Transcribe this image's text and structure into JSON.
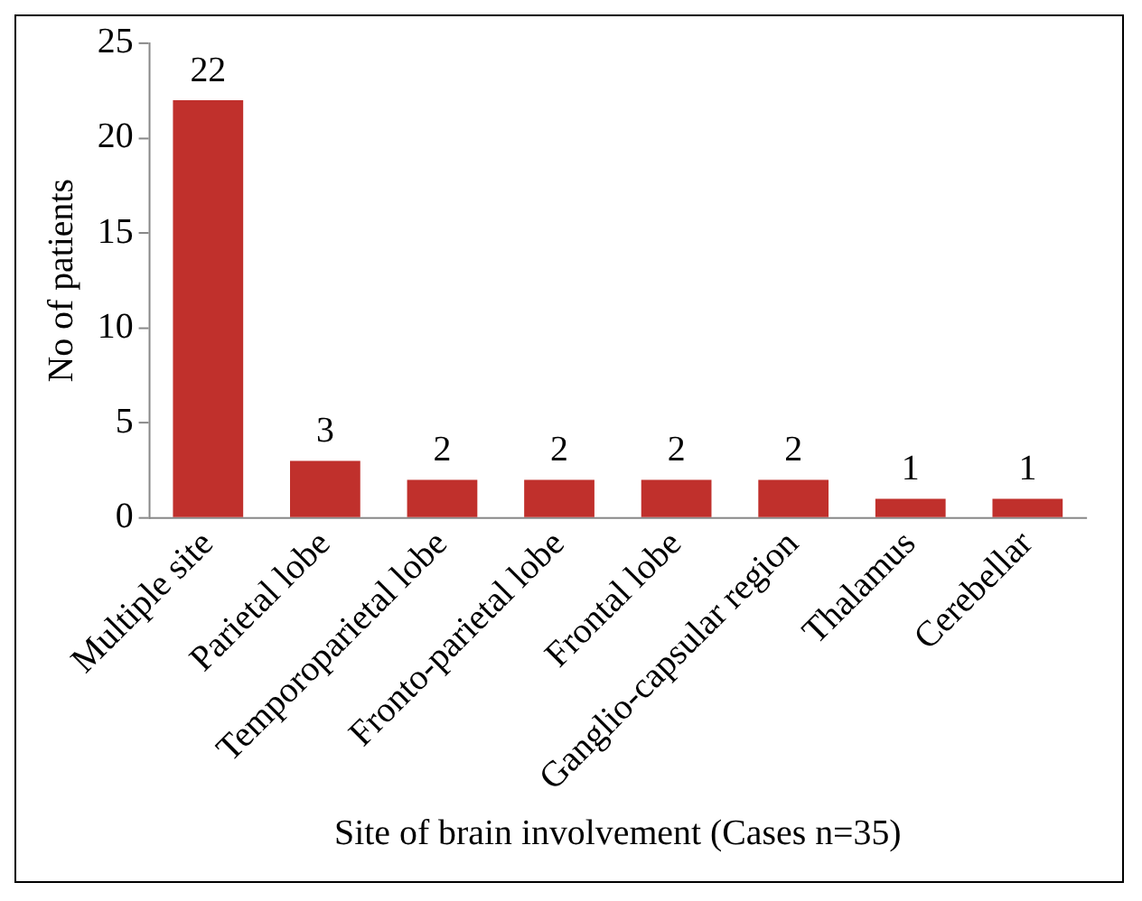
{
  "chart_data": {
    "type": "bar",
    "xlabel": "Site of brain involvement (Cases n=35)",
    "ylabel": "No of patients",
    "categories": [
      "Multiple site",
      "Parietal lobe",
      "Temporoparietal lobe",
      "Fronto-parietal lobe",
      "Frontal lobe",
      "Ganglio-capsular region",
      "Thalamus",
      "Cerebellar"
    ],
    "values": [
      22,
      3,
      2,
      2,
      2,
      2,
      1,
      1
    ],
    "color": "#c0302c",
    "ylim": [
      0,
      25
    ],
    "yticks": [
      0,
      5,
      10,
      15,
      20,
      25
    ],
    "grid": false,
    "data_labels": true
  }
}
